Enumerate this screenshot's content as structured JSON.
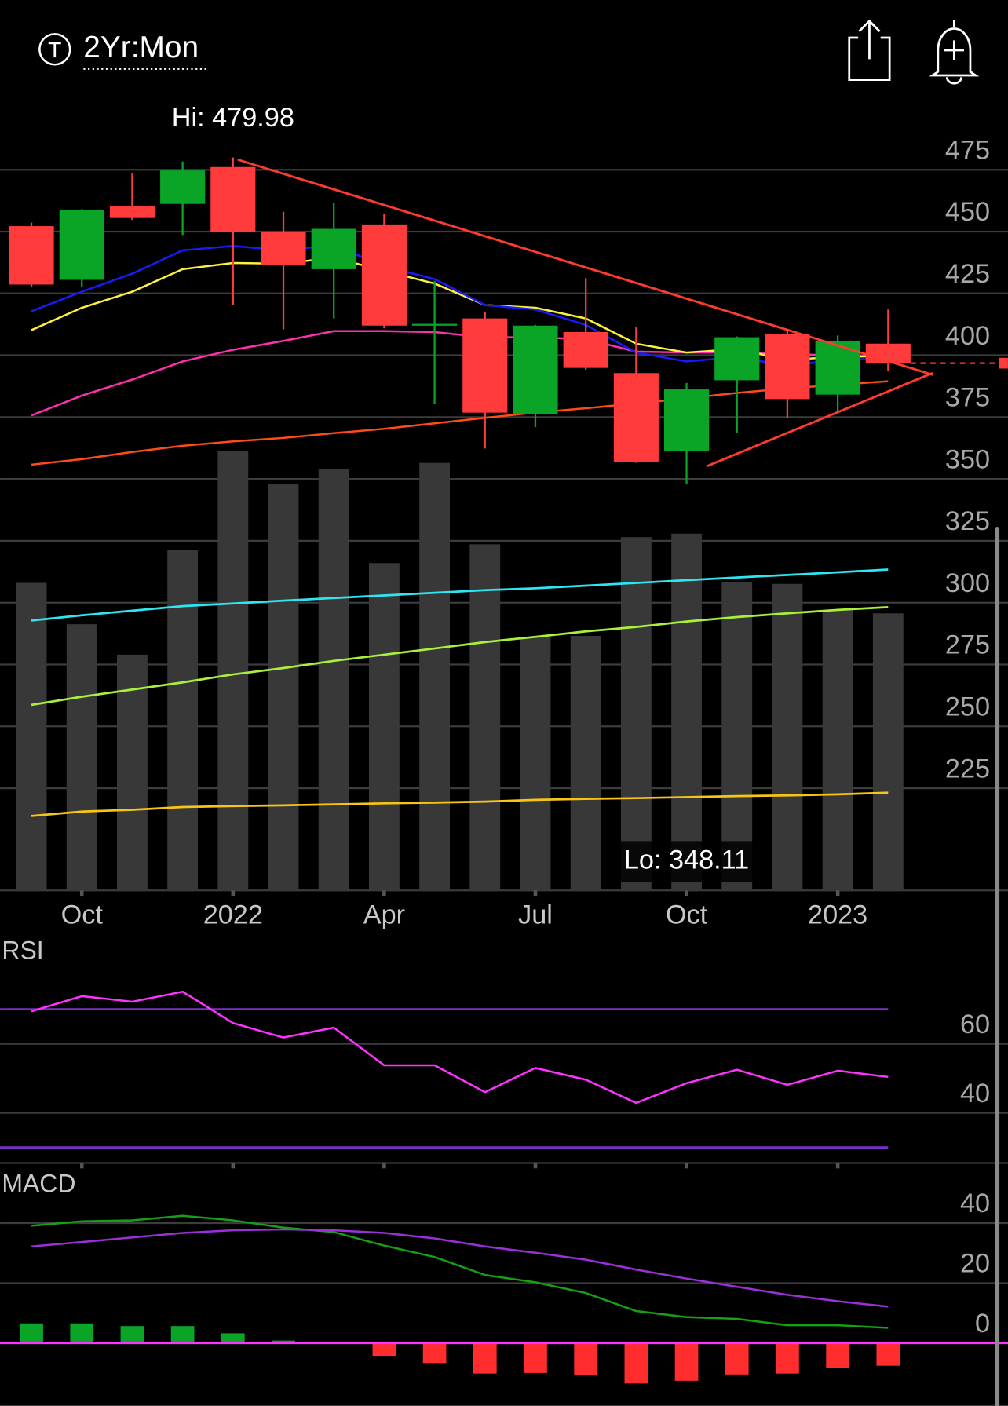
{
  "header": {
    "title": "2Yr:Mon"
  },
  "chart_data": [
    {
      "type": "candlestick",
      "categories": [
        null,
        "Oct",
        null,
        null,
        "2022",
        null,
        null,
        "Apr",
        null,
        null,
        "Jul",
        null,
        null,
        "Oct",
        null,
        null,
        "2023",
        null
      ],
      "open": [
        452.2,
        430.5,
        460.2,
        461.2,
        476.1,
        450.0,
        434.8,
        452.9,
        412.0,
        414.9,
        376.1,
        409.4,
        392.8,
        361.2,
        389.9,
        408.7,
        384.1,
        404.7
      ],
      "high": [
        453.6,
        459.1,
        473.6,
        478.3,
        479.98,
        458.0,
        461.6,
        457.3,
        430.1,
        417.4,
        412.3,
        431.2,
        411.6,
        388.8,
        407.6,
        410.2,
        408.0,
        418.5
      ],
      "low": [
        427.6,
        427.6,
        454.7,
        448.6,
        420.3,
        410.5,
        414.9,
        410.9,
        380.5,
        362.3,
        371.0,
        394.2,
        356.5,
        348.11,
        368.5,
        374.7,
        376.8,
        393.5
      ],
      "close": [
        428.6,
        458.7,
        455.5,
        474.7,
        449.7,
        436.6,
        451.1,
        412.0,
        412.7,
        376.8,
        412.0,
        394.9,
        356.9,
        386.2,
        407.3,
        382.3,
        405.8,
        396.8
      ],
      "up_color": "#0aa527",
      "down_color": "#ff3b3b",
      "volume": [
        308.0,
        291.3,
        279.0,
        321.4,
        361.3,
        347.8,
        354.0,
        316.0,
        356.5,
        323.6,
        286.2,
        286.6,
        326.5,
        327.9,
        308.3,
        307.6,
        297.1,
        295.7
      ],
      "volume_color": "#383838",
      "volume_series": [
        {
          "color": "#2fe6f0",
          "values": [
            292.8,
            294.9,
            296.8,
            298.6,
            299.7,
            300.8,
            301.9,
            302.9,
            304.0,
            305.1,
            305.8,
            306.9,
            308.0,
            309.1,
            310.2,
            311.2,
            312.3,
            313.4
          ]
        },
        {
          "color": "#a8f03a",
          "values": [
            258.7,
            262.0,
            264.9,
            267.8,
            271.0,
            273.6,
            276.5,
            279.0,
            281.5,
            284.1,
            286.2,
            288.4,
            290.2,
            292.4,
            294.2,
            295.7,
            297.1,
            298.2
          ]
        },
        {
          "color": "#f5c518",
          "values": [
            213.8,
            215.6,
            216.3,
            217.4,
            217.8,
            218.1,
            218.5,
            218.9,
            219.2,
            219.6,
            220.3,
            220.7,
            221.0,
            221.4,
            221.8,
            222.1,
            222.5,
            223.2
          ]
        }
      ],
      "series": [
        {
          "color": "#ff4a1a",
          "values": [
            355.8,
            358.0,
            360.9,
            363.4,
            365.2,
            366.6,
            368.5,
            370.3,
            372.5,
            374.7,
            376.8,
            378.6,
            380.5,
            382.6,
            384.8,
            386.6,
            388.1,
            389.5
          ]
        },
        {
          "color": "#ff2fb0",
          "values": [
            375.7,
            383.7,
            390.2,
            397.5,
            402.2,
            405.8,
            409.8,
            409.8,
            409.4,
            407.3,
            407.3,
            406.5,
            401.5,
            401.1,
            401.1,
            400.4,
            400.0,
            399.7
          ]
        },
        {
          "color": "#fff03a",
          "values": [
            410.2,
            419.2,
            425.7,
            434.8,
            437.3,
            437.0,
            439.5,
            434.1,
            429.0,
            420.3,
            419.2,
            414.9,
            404.7,
            401.1,
            402.5,
            398.2,
            399.3,
            399.7
          ]
        },
        {
          "color": "#1a1aff",
          "values": [
            417.8,
            425.7,
            433.0,
            442.4,
            444.2,
            442.4,
            444.6,
            435.9,
            430.8,
            420.3,
            418.5,
            412.3,
            401.1,
            397.5,
            399.3,
            395.7,
            398.2,
            398.6
          ]
        }
      ],
      "annotations": {
        "high": "Hi: 479.98",
        "low": "Lo: 348.11"
      },
      "ylim": [
        183.7,
        507
      ],
      "yticks": [
        475,
        450,
        425,
        400,
        375,
        350,
        325,
        300,
        275,
        250,
        225
      ],
      "grid": true
    },
    {
      "type": "line",
      "title": "RSI",
      "series": [
        {
          "color": "#ff33ff",
          "values": [
            69.4,
            73.8,
            72.2,
            75.1,
            66.0,
            61.8,
            64.7,
            53.8,
            53.8,
            46.0,
            53.0,
            49.6,
            42.9,
            48.6,
            52.5,
            48.1,
            52.2,
            50.4
          ]
        }
      ],
      "levels": [
        70,
        30
      ],
      "level_color": "#7a2fc8",
      "ylim": [
        25.5,
        90.9
      ],
      "yticks": [
        60,
        40
      ],
      "grid": true
    },
    {
      "type": "line",
      "title": "MACD",
      "series": [
        {
          "type": "bar",
          "up_color": "#0aa527",
          "down_color": "#ff2d2d",
          "values": [
            6.6,
            6.6,
            5.7,
            5.7,
            3.3,
            0.9,
            0,
            -4.2,
            -6.6,
            -10.1,
            -9.9,
            -10.7,
            -13.4,
            -12.5,
            -10.4,
            -10.1,
            -8.1,
            -7.5
          ]
        },
        {
          "color": "#16a016",
          "values": [
            39.1,
            40.6,
            40.9,
            42.4,
            40.9,
            38.5,
            37.0,
            32.5,
            28.7,
            22.7,
            20.3,
            16.7,
            10.7,
            8.7,
            8.1,
            6.0,
            6.0,
            5.1
          ]
        },
        {
          "color": "#9b30d9",
          "values": [
            32.2,
            33.7,
            35.2,
            36.7,
            37.6,
            37.9,
            37.6,
            36.7,
            34.9,
            32.2,
            30.1,
            27.8,
            24.5,
            21.5,
            18.8,
            16.1,
            14.0,
            12.2
          ]
        }
      ],
      "zero_color": "#ff33ff",
      "ylim": [
        -20.9,
        57.6
      ],
      "yticks": [
        40,
        20,
        0
      ],
      "grid": true
    }
  ]
}
